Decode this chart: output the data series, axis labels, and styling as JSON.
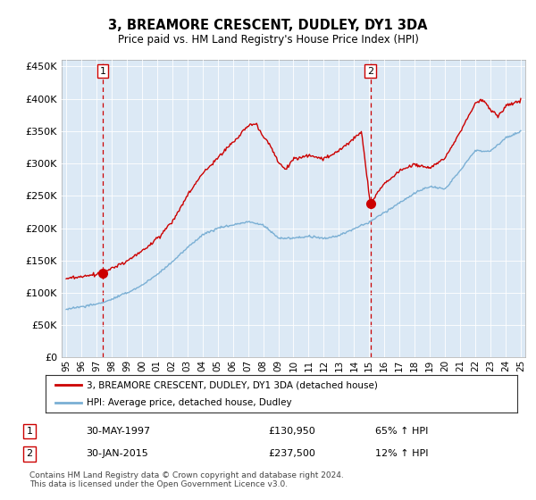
{
  "title": "3, BREAMORE CRESCENT, DUDLEY, DY1 3DA",
  "subtitle": "Price paid vs. HM Land Registry's House Price Index (HPI)",
  "ylabel_ticks": [
    "£0",
    "£50K",
    "£100K",
    "£150K",
    "£200K",
    "£250K",
    "£300K",
    "£350K",
    "£400K",
    "£450K"
  ],
  "ytick_values": [
    0,
    50000,
    100000,
    150000,
    200000,
    250000,
    300000,
    350000,
    400000,
    450000
  ],
  "ylim": [
    0,
    460000
  ],
  "xlim_start": 1994.7,
  "xlim_end": 2025.3,
  "bg_color": "#dce9f5",
  "marker1_x": 1997.42,
  "marker1_y": 130950,
  "marker2_x": 2015.08,
  "marker2_y": 237500,
  "vline1_x": 1997.42,
  "vline2_x": 2015.08,
  "legend_label_red": "3, BREAMORE CRESCENT, DUDLEY, DY1 3DA (detached house)",
  "legend_label_blue": "HPI: Average price, detached house, Dudley",
  "table_row1": [
    "1",
    "30-MAY-1997",
    "£130,950",
    "65% ↑ HPI"
  ],
  "table_row2": [
    "2",
    "30-JAN-2015",
    "£237,500",
    "12% ↑ HPI"
  ],
  "footer": "Contains HM Land Registry data © Crown copyright and database right 2024.\nThis data is licensed under the Open Government Licence v3.0.",
  "line_color_red": "#cc0000",
  "line_color_blue": "#7aafd4",
  "marker_color": "#cc0000",
  "hpi_anchors_x": [
    1995,
    1996,
    1997,
    1998,
    1999,
    2000,
    2001,
    2002,
    2003,
    2004,
    2005,
    2006,
    2007,
    2008,
    2009,
    2010,
    2011,
    2012,
    2013,
    2014,
    2015,
    2016,
    2017,
    2018,
    2019,
    2020,
    2021,
    2022,
    2023,
    2024,
    2025
  ],
  "hpi_anchors_y": [
    75000,
    78000,
    82000,
    90000,
    100000,
    112000,
    128000,
    148000,
    170000,
    190000,
    200000,
    205000,
    210000,
    205000,
    185000,
    185000,
    188000,
    185000,
    190000,
    200000,
    210000,
    225000,
    240000,
    255000,
    265000,
    260000,
    290000,
    320000,
    320000,
    340000,
    350000
  ],
  "red_anchors_x": [
    1995,
    1996,
    1997,
    1997.42,
    1998,
    1999,
    2000,
    2001,
    2002,
    2003,
    2004,
    2005,
    2006,
    2007,
    2007.5,
    2008,
    2008.5,
    2009,
    2009.5,
    2010,
    2011,
    2012,
    2013,
    2014,
    2014.5,
    2015.08,
    2015.5,
    2016,
    2017,
    2018,
    2019,
    2020,
    2021,
    2022,
    2022.5,
    2023,
    2023.5,
    2024,
    2025
  ],
  "red_anchors_y": [
    122000,
    125000,
    128000,
    130950,
    138000,
    150000,
    165000,
    185000,
    210000,
    250000,
    285000,
    310000,
    335000,
    360000,
    365000,
    345000,
    330000,
    305000,
    295000,
    310000,
    315000,
    310000,
    320000,
    340000,
    350000,
    237500,
    255000,
    270000,
    290000,
    300000,
    295000,
    310000,
    350000,
    395000,
    400000,
    385000,
    375000,
    390000,
    400000
  ]
}
